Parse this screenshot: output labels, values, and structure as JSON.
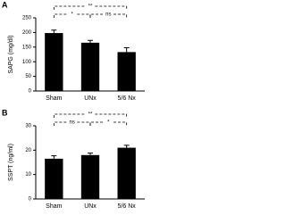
{
  "chart_data": [
    {
      "type": "bar",
      "panel": "A",
      "ylabel": "SAPG (mg/dl)",
      "categories": [
        "Sham",
        "UNx",
        "5/6 Nx"
      ],
      "values": [
        198,
        165,
        133
      ],
      "errors": [
        10,
        8,
        15
      ],
      "color": "#000000",
      "ylim": [
        0,
        250
      ],
      "yticks": [
        0,
        50,
        100,
        150,
        200,
        250
      ],
      "annotations": [
        "*",
        "ns",
        "**"
      ]
    },
    {
      "type": "bar",
      "panel": "B",
      "ylabel": "SSPT (ng/ml)",
      "categories": [
        "Sham",
        "UNx",
        "5/6 Nx"
      ],
      "values": [
        16.5,
        18,
        21
      ],
      "errors": [
        1.2,
        0.8,
        1.0
      ],
      "color": "#000000",
      "ylim": [
        0,
        30
      ],
      "yticks": [
        0,
        10,
        20,
        30
      ],
      "annotations": [
        "ns",
        "*",
        "**"
      ]
    }
  ]
}
